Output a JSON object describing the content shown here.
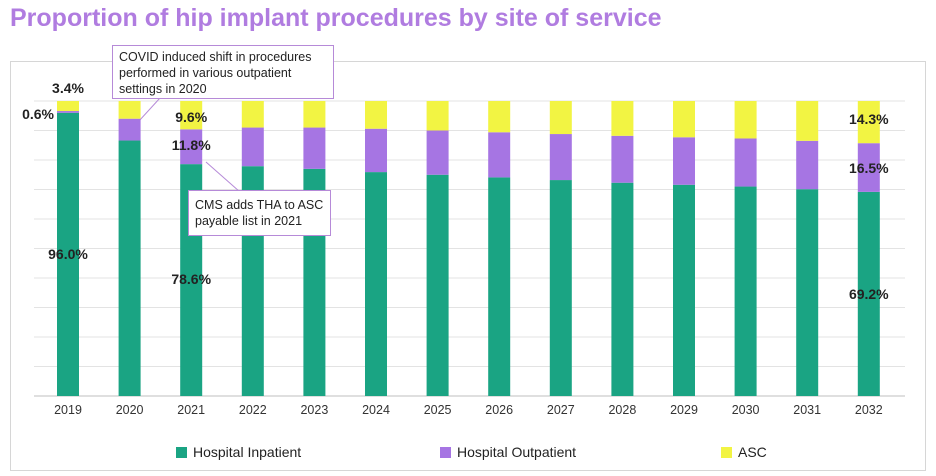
{
  "title": "Proportion of hip implant procedures by site of service",
  "colors": {
    "title": "#b07ce0",
    "inpatient": "#1aa483",
    "outpatient": "#a675e3",
    "asc": "#f2f443"
  },
  "callouts": {
    "covid": "COVID induced shift in procedures performed in various outpatient settings in 2020",
    "cms": "CMS adds THA to ASC payable list in 2021"
  },
  "legend": {
    "inpatient": "Hospital Inpatient",
    "outpatient": "Hospital Outpatient",
    "asc": "ASC"
  },
  "chart_data": {
    "type": "bar",
    "stacked": true,
    "title": "Proportion of hip implant procedures by site of service",
    "categories": [
      "2019",
      "2020",
      "2021",
      "2022",
      "2023",
      "2024",
      "2025",
      "2026",
      "2027",
      "2028",
      "2029",
      "2030",
      "2031",
      "2032"
    ],
    "ylim": [
      0,
      100
    ],
    "grid": true,
    "legend_position": "bottom",
    "series": [
      {
        "name": "Hospital Inpatient",
        "color": "#1aa483",
        "values": [
          96.0,
          86.6,
          78.6,
          77.9,
          77.0,
          75.9,
          75.0,
          74.1,
          73.2,
          72.3,
          71.6,
          71.0,
          70.1,
          69.2
        ]
      },
      {
        "name": "Hospital Outpatient",
        "color": "#a675e3",
        "values": [
          0.6,
          7.4,
          11.8,
          13.1,
          14.0,
          14.7,
          15.0,
          15.3,
          15.6,
          15.9,
          16.1,
          16.3,
          16.4,
          16.5
        ]
      },
      {
        "name": "ASC",
        "color": "#f2f443",
        "values": [
          3.4,
          6.0,
          9.6,
          9.0,
          9.0,
          9.4,
          10.0,
          10.6,
          11.2,
          11.8,
          12.3,
          12.7,
          13.5,
          14.3
        ]
      }
    ],
    "data_labels": [
      {
        "text": "3.4%",
        "category": "2019",
        "series": "ASC"
      },
      {
        "text": "0.6%",
        "category": "2019",
        "series": "Hospital Outpatient"
      },
      {
        "text": "96.0%",
        "category": "2019",
        "series": "Hospital Inpatient"
      },
      {
        "text": "9.6%",
        "category": "2021",
        "series": "ASC"
      },
      {
        "text": "11.8%",
        "category": "2021",
        "series": "Hospital Outpatient"
      },
      {
        "text": "78.6%",
        "category": "2021",
        "series": "Hospital Inpatient"
      },
      {
        "text": "14.3%",
        "category": "2032",
        "series": "ASC"
      },
      {
        "text": "16.5%",
        "category": "2032",
        "series": "Hospital Outpatient"
      },
      {
        "text": "69.2%",
        "category": "2032",
        "series": "Hospital Inpatient"
      }
    ]
  }
}
